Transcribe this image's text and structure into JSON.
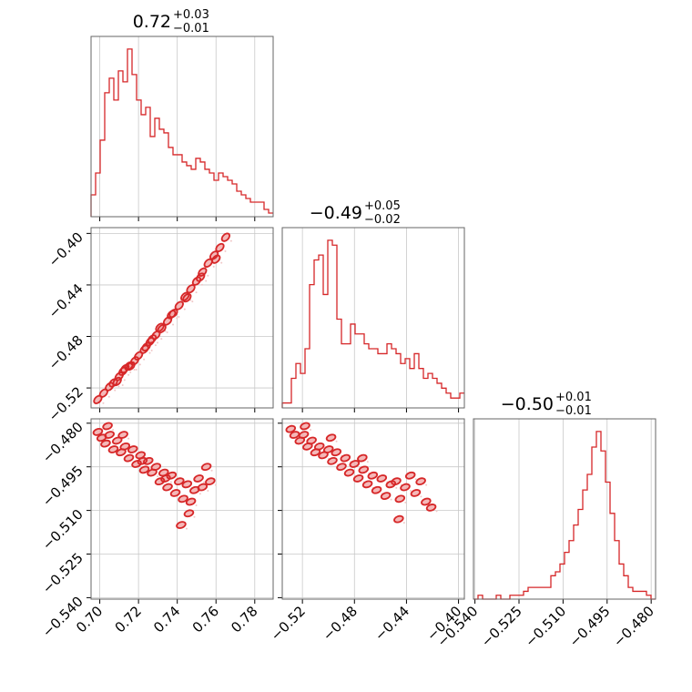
{
  "chart_data": {
    "type": "corner",
    "color": "#d62728",
    "fill_color": "#f2a6a6",
    "grid": true,
    "parameters": [
      {
        "title": {
          "median": "0.72",
          "plus": "+0.03",
          "minus": "−0.01"
        },
        "range": [
          0.6955,
          0.7895
        ],
        "ticks": [
          {
            "value": 0.7,
            "label": "0.70"
          },
          {
            "value": 0.72,
            "label": "0.72"
          },
          {
            "value": 0.74,
            "label": "0.74"
          },
          {
            "value": 0.76,
            "label": "0.76"
          },
          {
            "value": 0.78,
            "label": "0.78"
          }
        ],
        "histogram": [
          6,
          12,
          21,
          34,
          38,
          32,
          40,
          37,
          46,
          39,
          32,
          28,
          30,
          22,
          27,
          24,
          23,
          19,
          17,
          17,
          15,
          14,
          13,
          16,
          15,
          13,
          12,
          10,
          12,
          11,
          10,
          9,
          7,
          6,
          5,
          4,
          4,
          4,
          2,
          1
        ]
      },
      {
        "title": {
          "median": "−0.49",
          "plus": "+0.05",
          "minus": "−0.02"
        },
        "range": [
          -0.5355,
          -0.3955
        ],
        "ticks": [
          {
            "value": -0.52,
            "label": "−0.52"
          },
          {
            "value": -0.48,
            "label": "−0.48"
          },
          {
            "value": -0.44,
            "label": "−0.44"
          },
          {
            "value": -0.4,
            "label": "−0.40"
          }
        ],
        "histogram": [
          1,
          1,
          6,
          9,
          7,
          12,
          25,
          30,
          31,
          23,
          34,
          33,
          18,
          13,
          13,
          17,
          15,
          15,
          13,
          12,
          12,
          11,
          11,
          13,
          12,
          11,
          9,
          10,
          8,
          11,
          8,
          6,
          7,
          6,
          5,
          4,
          3,
          2,
          2,
          3
        ]
      },
      {
        "title": {
          "median": "−0.50",
          "plus": "+0.01",
          "minus": "−0.01"
        },
        "range": [
          -0.5405,
          -0.4785
        ],
        "ticks": [
          {
            "value": -0.54,
            "label": "−0.540"
          },
          {
            "value": -0.525,
            "label": "−0.525"
          },
          {
            "value": -0.51,
            "label": "−0.510"
          },
          {
            "value": -0.495,
            "label": "−0.495"
          },
          {
            "value": -0.48,
            "label": "−0.480"
          }
        ],
        "histogram": [
          0,
          1,
          0,
          0,
          0,
          1,
          0,
          0,
          1,
          1,
          1,
          2,
          3,
          3,
          3,
          3,
          3,
          6,
          7,
          9,
          12,
          15,
          19,
          23,
          28,
          32,
          39,
          43,
          38,
          30,
          22,
          15,
          9,
          6,
          3,
          2,
          2,
          2,
          1,
          0
        ]
      }
    ],
    "scatter": {
      "0-1": {
        "x": [
          0.699,
          0.702,
          0.705,
          0.707,
          0.71,
          0.712,
          0.715,
          0.718,
          0.72,
          0.723,
          0.726,
          0.729,
          0.732,
          0.735,
          0.738,
          0.741,
          0.744,
          0.747,
          0.75,
          0.753,
          0.756,
          0.759,
          0.762,
          0.765,
          0.709,
          0.716,
          0.724,
          0.731,
          0.737,
          0.745,
          0.752,
          0.76,
          0.713,
          0.727
        ],
        "y": [
          -0.529,
          -0.524,
          -0.519,
          -0.516,
          -0.511,
          -0.507,
          -0.503,
          -0.499,
          -0.495,
          -0.49,
          -0.484,
          -0.479,
          -0.474,
          -0.468,
          -0.462,
          -0.456,
          -0.449,
          -0.443,
          -0.437,
          -0.43,
          -0.423,
          -0.417,
          -0.411,
          -0.403,
          -0.515,
          -0.503,
          -0.488,
          -0.473,
          -0.463,
          -0.45,
          -0.434,
          -0.42,
          -0.505,
          -0.482
        ]
      },
      "0-2": {
        "x": [
          0.699,
          0.701,
          0.703,
          0.705,
          0.707,
          0.709,
          0.711,
          0.713,
          0.715,
          0.717,
          0.719,
          0.721,
          0.723,
          0.725,
          0.727,
          0.729,
          0.731,
          0.733,
          0.735,
          0.737,
          0.739,
          0.741,
          0.743,
          0.745,
          0.747,
          0.749,
          0.751,
          0.753,
          0.755,
          0.757,
          0.704,
          0.712,
          0.722,
          0.734,
          0.746,
          0.742
        ],
        "y": [
          -0.483,
          -0.485,
          -0.487,
          -0.484,
          -0.489,
          -0.486,
          -0.49,
          -0.488,
          -0.492,
          -0.489,
          -0.494,
          -0.491,
          -0.496,
          -0.493,
          -0.497,
          -0.495,
          -0.5,
          -0.497,
          -0.502,
          -0.498,
          -0.504,
          -0.5,
          -0.506,
          -0.501,
          -0.507,
          -0.503,
          -0.499,
          -0.502,
          -0.495,
          -0.5,
          -0.481,
          -0.484,
          -0.493,
          -0.499,
          -0.511,
          -0.515
        ]
      },
      "1-2": {
        "x": [
          -0.529,
          -0.526,
          -0.522,
          -0.519,
          -0.516,
          -0.513,
          -0.51,
          -0.507,
          -0.504,
          -0.5,
          -0.497,
          -0.494,
          -0.49,
          -0.487,
          -0.484,
          -0.48,
          -0.477,
          -0.473,
          -0.47,
          -0.466,
          -0.463,
          -0.459,
          -0.456,
          -0.452,
          -0.448,
          -0.445,
          -0.441,
          -0.437,
          -0.433,
          -0.429,
          -0.425,
          -0.421,
          -0.518,
          -0.498,
          -0.474,
          -0.446
        ],
        "y": [
          -0.482,
          -0.484,
          -0.486,
          -0.484,
          -0.488,
          -0.486,
          -0.49,
          -0.488,
          -0.491,
          -0.489,
          -0.493,
          -0.49,
          -0.495,
          -0.492,
          -0.497,
          -0.494,
          -0.499,
          -0.496,
          -0.501,
          -0.498,
          -0.503,
          -0.499,
          -0.505,
          -0.501,
          -0.5,
          -0.506,
          -0.502,
          -0.498,
          -0.504,
          -0.5,
          -0.507,
          -0.509,
          -0.481,
          -0.485,
          -0.492,
          -0.513
        ]
      }
    }
  }
}
